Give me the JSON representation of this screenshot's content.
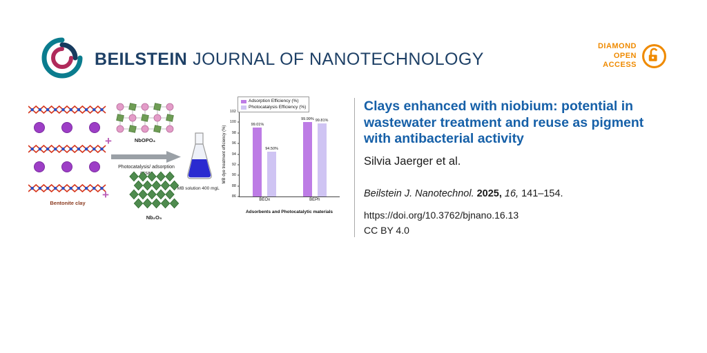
{
  "header": {
    "journal_bold": "BEILSTEIN",
    "journal_rest": "JOURNAL OF NANOTECHNOLOGY",
    "badge": {
      "lines": [
        "DIAMOND",
        "OPEN",
        "ACCESS"
      ],
      "color": "#ef8a00"
    }
  },
  "figure": {
    "bentonite_label": "Bentonite clay",
    "plus": "+",
    "nbopo4_label": "NbOPO₄",
    "arrow_label_line1": "Photocatalysis/ adsorption",
    "arrow_label_line2": "assay",
    "nb2o5_label": "Nb₂O₅",
    "flask_label": "MB solution 400 mgL⁻¹"
  },
  "chart_data": {
    "type": "bar",
    "title": "",
    "categories": [
      "BEOx",
      "BEPh"
    ],
    "series": [
      {
        "name": "Adsorption Efficiency  (%)",
        "color": "#bd7ce5",
        "values": [
          99.01,
          99.99
        ],
        "labels": [
          "99.01%",
          "99.99%"
        ]
      },
      {
        "name": "Photocatalysis Efficiency (%)",
        "color": "#cfc4f3",
        "values": [
          94.5,
          99.81
        ],
        "labels": [
          "94.50%",
          "99.81%"
        ]
      }
    ],
    "xlabel": "Adsorbents and Photocatalytic materials",
    "ylabel": "MB dye treatment efficiency (%)",
    "ylim": [
      86,
      102
    ],
    "yticks": [
      86,
      88,
      90,
      92,
      94,
      96,
      98,
      100,
      102
    ],
    "legend_position": "top",
    "grid": false
  },
  "article": {
    "title": "Clays enhanced with niobium: potential in wastewater treatment and reuse as pigment with antibacterial activity",
    "title_color": "#1660a8",
    "authors": "Silvia Jaerger et al.",
    "citation": {
      "journal": "Beilstein J. Nanotechnol.",
      "year": "2025,",
      "volume": "16,",
      "pages": "141–154."
    },
    "doi": "https://doi.org/10.3762/bjnano.16.13",
    "license": "CC BY 4.0"
  }
}
